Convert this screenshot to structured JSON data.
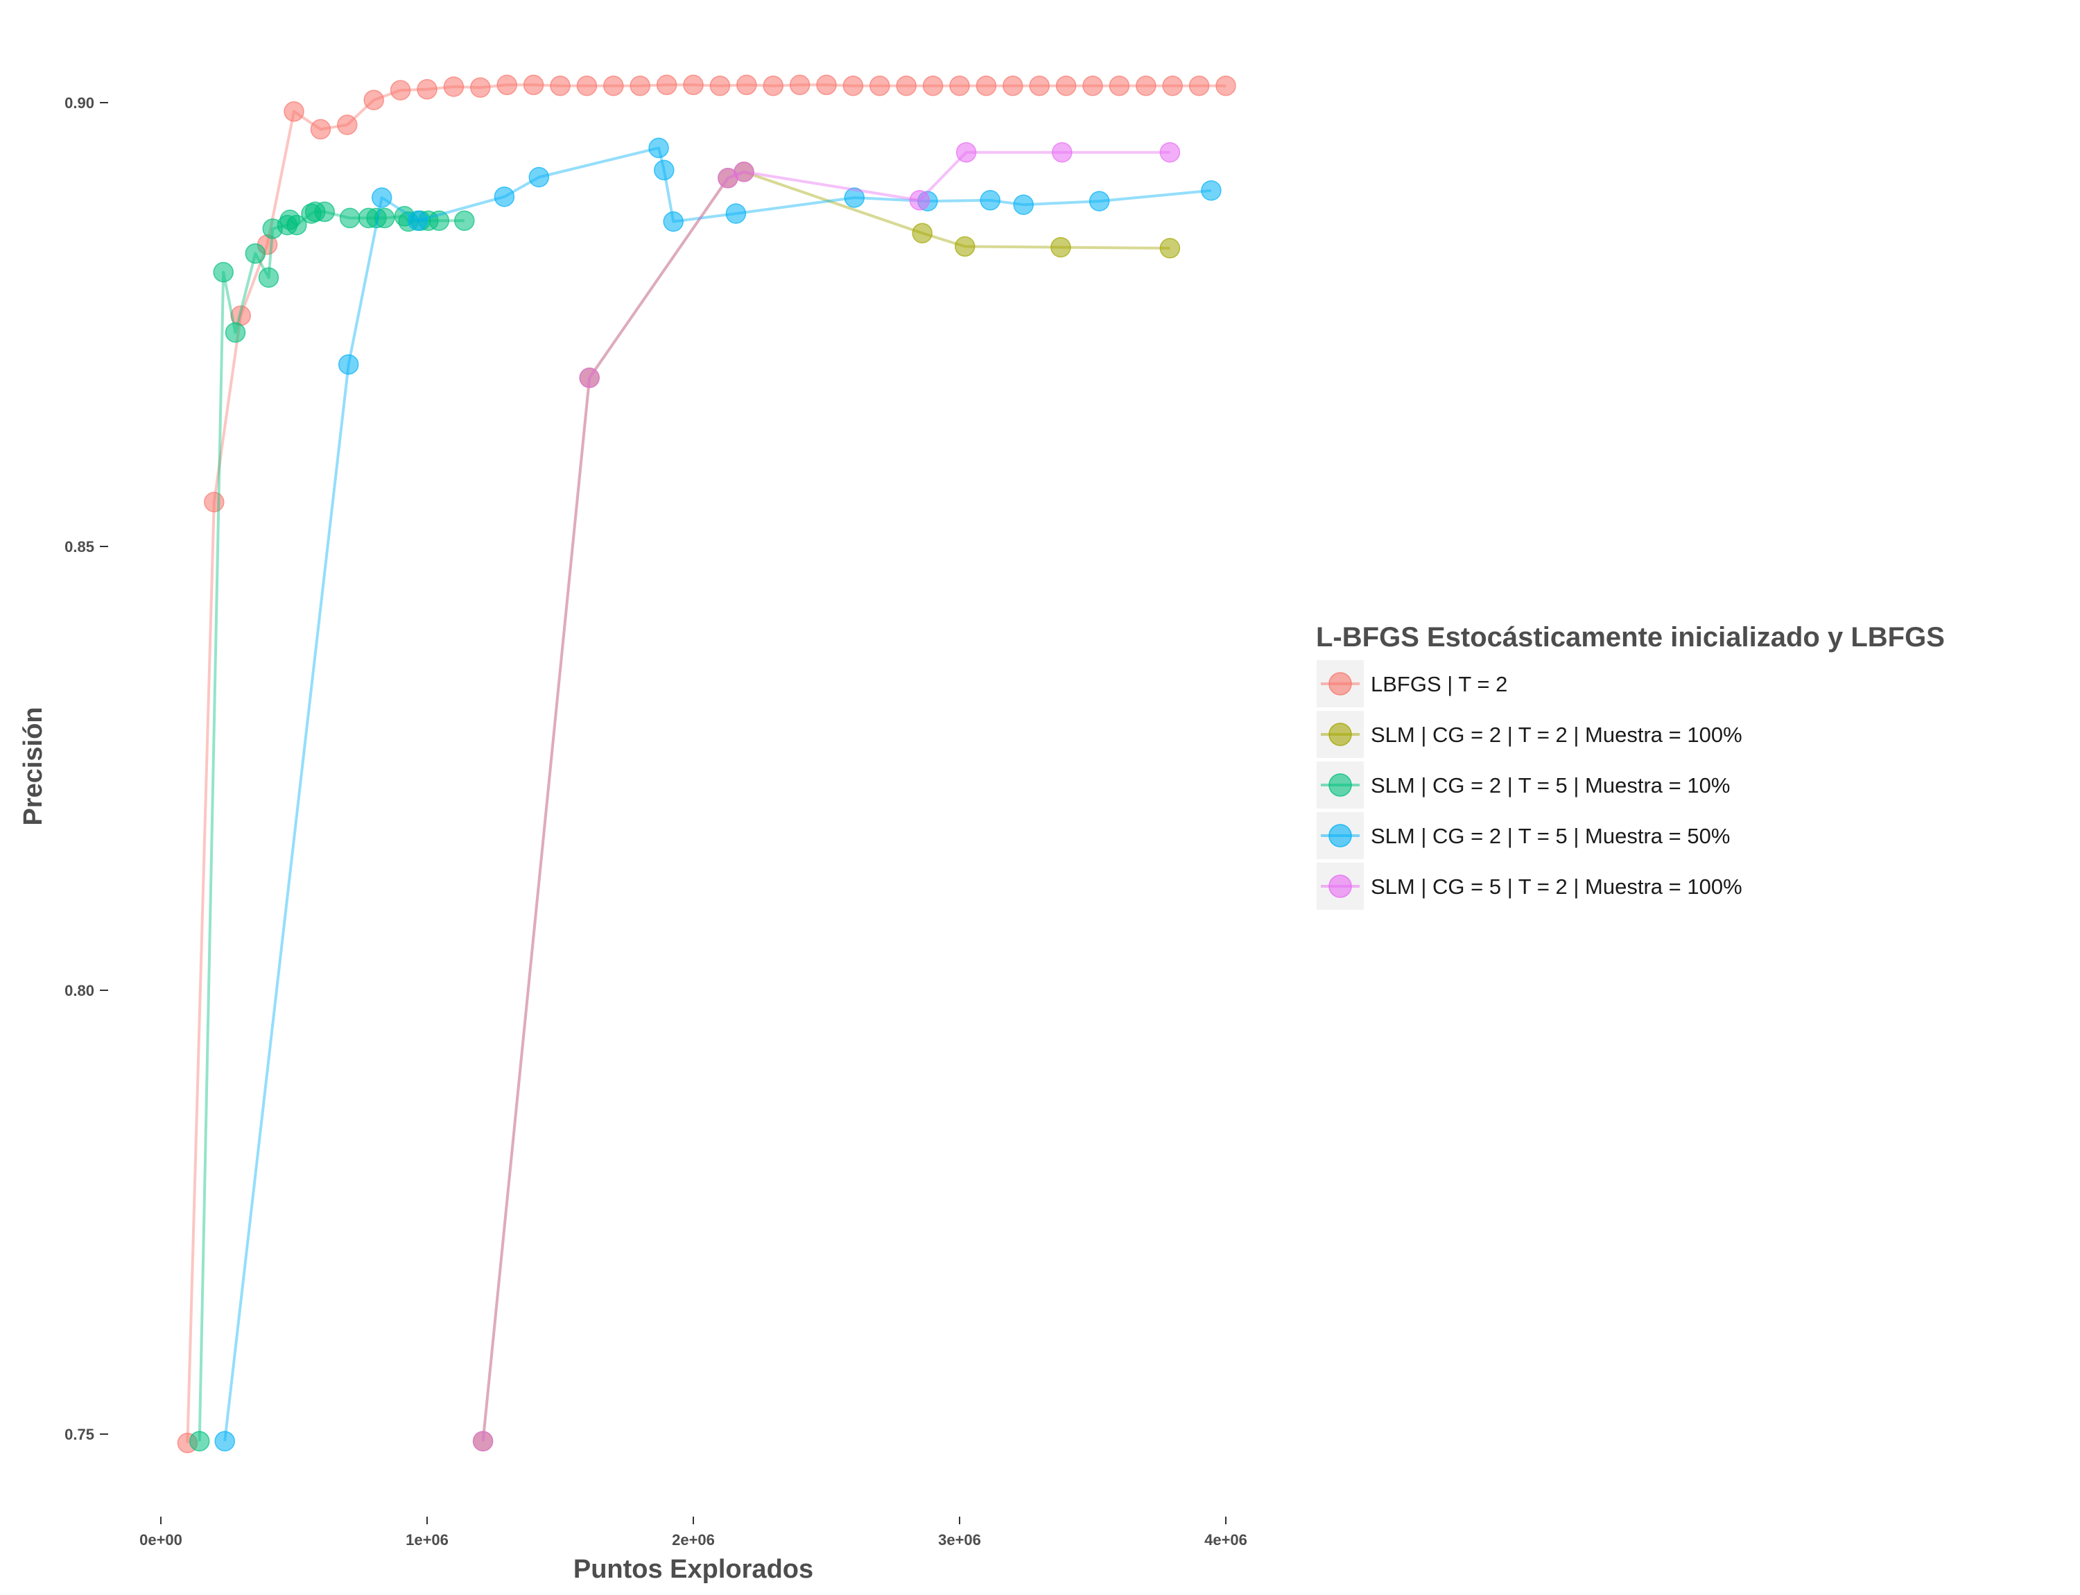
{
  "chart_data": {
    "type": "line",
    "title": "",
    "xlabel": "Puntos Explorados",
    "ylabel": "Precisión",
    "xlim": [
      -80000,
      4100000
    ],
    "ylim": [
      0.7425,
      0.908
    ],
    "x_ticks": [
      {
        "value": 0,
        "label": "0e+00"
      },
      {
        "value": 1000000,
        "label": "1e+06"
      },
      {
        "value": 2000000,
        "label": "2e+06"
      },
      {
        "value": 3000000,
        "label": "3e+06"
      },
      {
        "value": 4000000,
        "label": "4e+06"
      }
    ],
    "y_ticks": [
      {
        "value": 0.75,
        "label": "0.75"
      },
      {
        "value": 0.8,
        "label": "0.80"
      },
      {
        "value": 0.85,
        "label": "0.85"
      },
      {
        "value": 0.9,
        "label": "0.90"
      }
    ],
    "grid": false,
    "legend": {
      "title": "L-BFGS Estocásticamente inicializado y LBFGS",
      "position": "right"
    },
    "series": [
      {
        "name": "LBFGS  | T = 2",
        "color": "#F8766D",
        "points": [
          [
            100000,
            0.749
          ],
          [
            200000,
            0.855
          ],
          [
            300000,
            0.876
          ],
          [
            400000,
            0.884
          ],
          [
            500000,
            0.899
          ],
          [
            600000,
            0.897
          ],
          [
            700000,
            0.8975
          ],
          [
            800000,
            0.9003
          ],
          [
            900000,
            0.9014
          ],
          [
            1000000,
            0.9015
          ],
          [
            1100000,
            0.9018
          ],
          [
            1200000,
            0.9017
          ],
          [
            1300000,
            0.902
          ],
          [
            1400000,
            0.902
          ],
          [
            1500000,
            0.9019
          ],
          [
            1600000,
            0.9019
          ],
          [
            1700000,
            0.9019
          ],
          [
            1800000,
            0.9019
          ],
          [
            1900000,
            0.902
          ],
          [
            2000000,
            0.902
          ],
          [
            2100000,
            0.9019
          ],
          [
            2200000,
            0.902
          ],
          [
            2300000,
            0.9019
          ],
          [
            2400000,
            0.902
          ],
          [
            2500000,
            0.902
          ],
          [
            2600000,
            0.9019
          ],
          [
            2700000,
            0.9019
          ],
          [
            2800000,
            0.9019
          ],
          [
            2900000,
            0.9019
          ],
          [
            3000000,
            0.9019
          ],
          [
            3100000,
            0.9019
          ],
          [
            3200000,
            0.9019
          ],
          [
            3300000,
            0.9019
          ],
          [
            3400000,
            0.9019
          ],
          [
            3500000,
            0.9019
          ],
          [
            3600000,
            0.9019
          ],
          [
            3700000,
            0.9019
          ],
          [
            3800000,
            0.9019
          ],
          [
            3900000,
            0.9019
          ],
          [
            4000000,
            0.9019
          ]
        ]
      },
      {
        "name": "SLM | CG = 2 | T = 2 | Muestra = 100%",
        "color": "#A3A500",
        "points": [
          [
            1210000,
            0.7492
          ],
          [
            1610000,
            0.869
          ],
          [
            2130000,
            0.8915
          ],
          [
            2190000,
            0.8922
          ],
          [
            2860000,
            0.8853
          ],
          [
            3020000,
            0.8838
          ],
          [
            3380000,
            0.8837
          ],
          [
            3790000,
            0.8836
          ]
        ]
      },
      {
        "name": "SLM | CG = 2 | T = 5 | Muestra = 10%",
        "color": "#00BF7D",
        "points": [
          [
            145000,
            0.7492
          ],
          [
            235000,
            0.8809
          ],
          [
            280000,
            0.8741
          ],
          [
            355000,
            0.883
          ],
          [
            405000,
            0.8803
          ],
          [
            420000,
            0.8858
          ],
          [
            475000,
            0.8862
          ],
          [
            485000,
            0.8868
          ],
          [
            510000,
            0.8862
          ],
          [
            565000,
            0.8875
          ],
          [
            580000,
            0.8877
          ],
          [
            615000,
            0.8877
          ],
          [
            710000,
            0.887
          ],
          [
            780000,
            0.887
          ],
          [
            810000,
            0.887
          ],
          [
            840000,
            0.887
          ],
          [
            915000,
            0.8872
          ],
          [
            930000,
            0.8866
          ],
          [
            975000,
            0.8867
          ],
          [
            1005000,
            0.8867
          ],
          [
            1045000,
            0.8867
          ],
          [
            1140000,
            0.8867
          ]
        ]
      },
      {
        "name": "SLM | CG = 2 | T = 5 | Muestra = 50%",
        "color": "#00B0F6",
        "points": [
          [
            240000,
            0.7492
          ],
          [
            705000,
            0.8705
          ],
          [
            830000,
            0.8893
          ],
          [
            965000,
            0.8867
          ],
          [
            1290000,
            0.8894
          ],
          [
            1420000,
            0.8916
          ],
          [
            1870000,
            0.8949
          ],
          [
            1890000,
            0.8924
          ],
          [
            1925000,
            0.8866
          ],
          [
            2160000,
            0.8875
          ],
          [
            2605000,
            0.8893
          ],
          [
            2880000,
            0.8889
          ],
          [
            3115000,
            0.889
          ],
          [
            3240000,
            0.8885
          ],
          [
            3525000,
            0.8889
          ],
          [
            3945000,
            0.8901
          ]
        ]
      },
      {
        "name": "SLM | CG = 5 | T = 2 | Muestra = 100%",
        "color": "#E76BF3",
        "points": [
          [
            1210000,
            0.7492
          ],
          [
            1610000,
            0.869
          ],
          [
            2130000,
            0.8915
          ],
          [
            2190000,
            0.8922
          ],
          [
            2850000,
            0.889
          ],
          [
            3025000,
            0.8944
          ],
          [
            3385000,
            0.8944
          ],
          [
            3790000,
            0.8944
          ]
        ]
      }
    ]
  }
}
